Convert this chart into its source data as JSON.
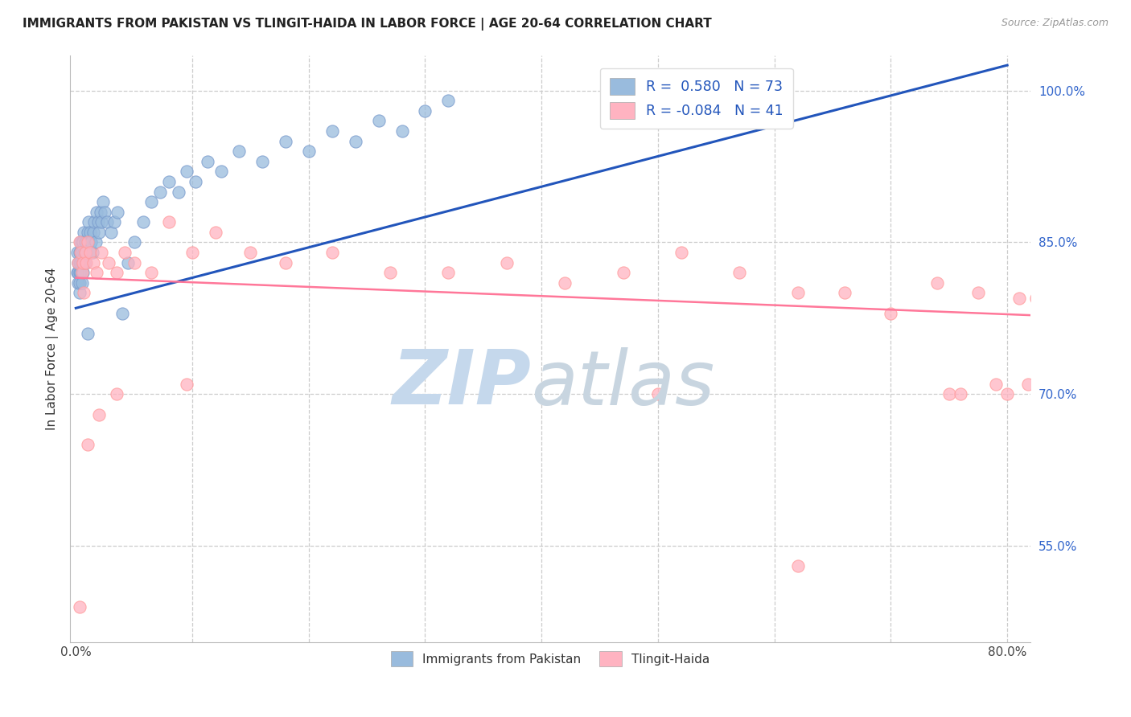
{
  "title": "IMMIGRANTS FROM PAKISTAN VS TLINGIT-HAIDA IN LABOR FORCE | AGE 20-64 CORRELATION CHART",
  "source": "Source: ZipAtlas.com",
  "ylabel": "In Labor Force | Age 20-64",
  "blue_color": "#99BBDD",
  "pink_color": "#FFB3C1",
  "blue_edge": "#7799CC",
  "pink_edge": "#FF9999",
  "trend_blue": "#2255BB",
  "trend_pink": "#FF7799",
  "watermark_zip_color": "#C5D8EC",
  "watermark_atlas_color": "#C8D5E0",
  "xlim": [
    -0.005,
    0.82
  ],
  "ylim": [
    0.455,
    1.035
  ],
  "ytick_vals": [
    0.55,
    0.7,
    0.85,
    1.0
  ],
  "ytick_labels": [
    "55.0%",
    "70.0%",
    "85.0%",
    "100.0%"
  ],
  "xtick_vals": [
    0.0,
    0.1,
    0.2,
    0.3,
    0.4,
    0.5,
    0.6,
    0.7,
    0.8
  ],
  "xtick_labels": [
    "0.0%",
    "",
    "",
    "",
    "",
    "",
    "",
    "",
    "80.0%"
  ],
  "legend1_label": "R =  0.580   N = 73",
  "legend2_label": "R = -0.084   N = 41",
  "bottom_legend1": "Immigrants from Pakistan",
  "bottom_legend2": "Tlingit-Haida",
  "pak_trend_x": [
    0.0,
    0.8
  ],
  "pak_trend_y": [
    0.785,
    1.025
  ],
  "tli_trend_x": [
    0.0,
    0.82
  ],
  "tli_trend_y": [
    0.815,
    0.778
  ],
  "pakistan_points_x": [
    0.001,
    0.001,
    0.002,
    0.002,
    0.002,
    0.003,
    0.003,
    0.003,
    0.003,
    0.003,
    0.004,
    0.004,
    0.004,
    0.004,
    0.005,
    0.005,
    0.005,
    0.005,
    0.006,
    0.006,
    0.006,
    0.007,
    0.007,
    0.007,
    0.008,
    0.008,
    0.008,
    0.009,
    0.009,
    0.01,
    0.01,
    0.011,
    0.011,
    0.012,
    0.012,
    0.013,
    0.014,
    0.015,
    0.016,
    0.017,
    0.018,
    0.019,
    0.02,
    0.021,
    0.022,
    0.023,
    0.025,
    0.027,
    0.03,
    0.033,
    0.036,
    0.04,
    0.045,
    0.05,
    0.058,
    0.065,
    0.072,
    0.08,
    0.088,
    0.095,
    0.103,
    0.113,
    0.125,
    0.14,
    0.16,
    0.18,
    0.2,
    0.22,
    0.24,
    0.26,
    0.28,
    0.3,
    0.32
  ],
  "pakistan_points_y": [
    0.82,
    0.84,
    0.81,
    0.83,
    0.82,
    0.84,
    0.83,
    0.8,
    0.82,
    0.81,
    0.83,
    0.85,
    0.82,
    0.84,
    0.83,
    0.85,
    0.81,
    0.84,
    0.85,
    0.83,
    0.82,
    0.84,
    0.83,
    0.86,
    0.85,
    0.84,
    0.83,
    0.85,
    0.84,
    0.86,
    0.76,
    0.85,
    0.87,
    0.84,
    0.86,
    0.85,
    0.84,
    0.86,
    0.87,
    0.85,
    0.88,
    0.87,
    0.86,
    0.88,
    0.87,
    0.89,
    0.88,
    0.87,
    0.86,
    0.87,
    0.88,
    0.78,
    0.83,
    0.85,
    0.87,
    0.89,
    0.9,
    0.91,
    0.9,
    0.92,
    0.91,
    0.93,
    0.92,
    0.94,
    0.93,
    0.95,
    0.94,
    0.96,
    0.95,
    0.97,
    0.96,
    0.98,
    0.99
  ],
  "tlingit_points_x": [
    0.002,
    0.003,
    0.004,
    0.005,
    0.006,
    0.007,
    0.008,
    0.009,
    0.01,
    0.012,
    0.015,
    0.018,
    0.022,
    0.028,
    0.035,
    0.042,
    0.05,
    0.065,
    0.08,
    0.1,
    0.12,
    0.15,
    0.18,
    0.22,
    0.27,
    0.32,
    0.37,
    0.42,
    0.47,
    0.52,
    0.57,
    0.62,
    0.66,
    0.7,
    0.74,
    0.775,
    0.79,
    0.8,
    0.81,
    0.818,
    0.825
  ],
  "tlingit_points_y": [
    0.83,
    0.85,
    0.84,
    0.82,
    0.83,
    0.8,
    0.84,
    0.83,
    0.85,
    0.84,
    0.83,
    0.82,
    0.84,
    0.83,
    0.82,
    0.84,
    0.83,
    0.82,
    0.87,
    0.84,
    0.86,
    0.84,
    0.83,
    0.84,
    0.82,
    0.82,
    0.83,
    0.81,
    0.82,
    0.84,
    0.82,
    0.8,
    0.8,
    0.78,
    0.81,
    0.8,
    0.71,
    0.7,
    0.795,
    0.71,
    0.795
  ],
  "tlingit_outliers_x": [
    0.003,
    0.01,
    0.02,
    0.035,
    0.095,
    0.5,
    0.62,
    0.75,
    0.76
  ],
  "tlingit_outliers_y": [
    0.49,
    0.65,
    0.68,
    0.7,
    0.71,
    0.7,
    0.53,
    0.7,
    0.7
  ]
}
